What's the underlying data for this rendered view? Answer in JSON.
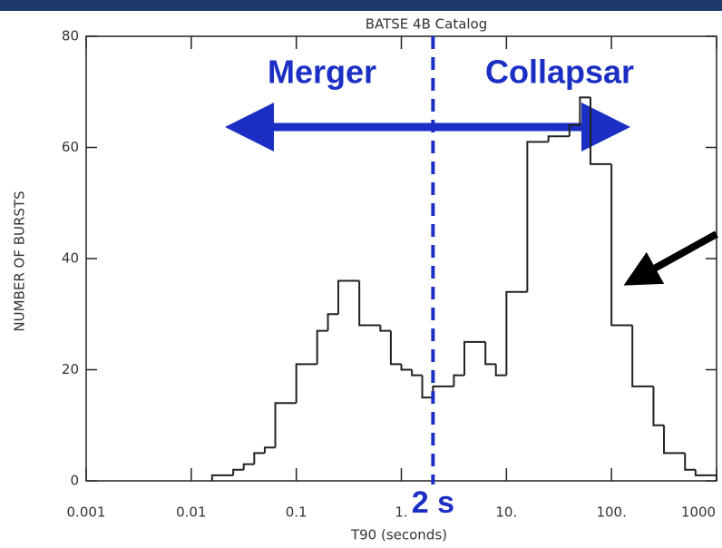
{
  "chart_data": {
    "type": "histogram",
    "title": "BATSE 4B Catalog",
    "x_label": "T90 (seconds)",
    "y_label": "NUMBER OF BURSTS",
    "annotations": [
      "Merger",
      "Collapsar"
    ],
    "threshold": {
      "value": 2,
      "label": "2 s"
    },
    "log_x": true,
    "color": "#222222",
    "bins": [
      0.0158,
      0.02,
      0.0251,
      0.0316,
      0.0398,
      0.0501,
      0.0631,
      0.0794,
      0.1,
      0.126,
      0.158,
      0.2,
      0.251,
      0.316,
      0.398,
      0.501,
      0.631,
      0.794,
      1,
      1.26,
      1.58,
      2,
      2.51,
      3.16,
      3.98,
      5.01,
      6.31,
      7.94,
      10,
      12.6,
      15.8,
      20,
      25.1,
      31.6,
      39.8,
      50.1,
      63.1,
      79.4,
      100,
      126,
      158,
      200,
      251,
      316,
      398,
      501,
      631,
      794,
      1000
    ],
    "values": [
      1,
      1,
      2,
      3,
      5,
      6,
      14,
      14,
      21,
      21,
      27,
      30,
      36,
      36,
      28,
      28,
      27,
      21,
      20,
      19,
      15,
      17,
      17,
      19,
      25,
      25,
      21,
      19,
      34,
      34,
      61,
      61,
      62,
      62,
      64,
      69,
      57,
      57,
      28,
      28,
      17,
      17,
      10,
      5,
      5,
      2,
      1,
      1
    ],
    "xlim": [
      0.001,
      1000
    ],
    "ylim": [
      0,
      80
    ],
    "xticks": [
      0.001,
      0.01,
      0.1,
      {
        "value": 1,
        "label": "1."
      },
      {
        "value": 10,
        "label": "10."
      },
      {
        "value": 100,
        "label": "100."
      },
      1000
    ],
    "yticks": [
      0,
      20,
      40,
      60,
      80
    ]
  }
}
